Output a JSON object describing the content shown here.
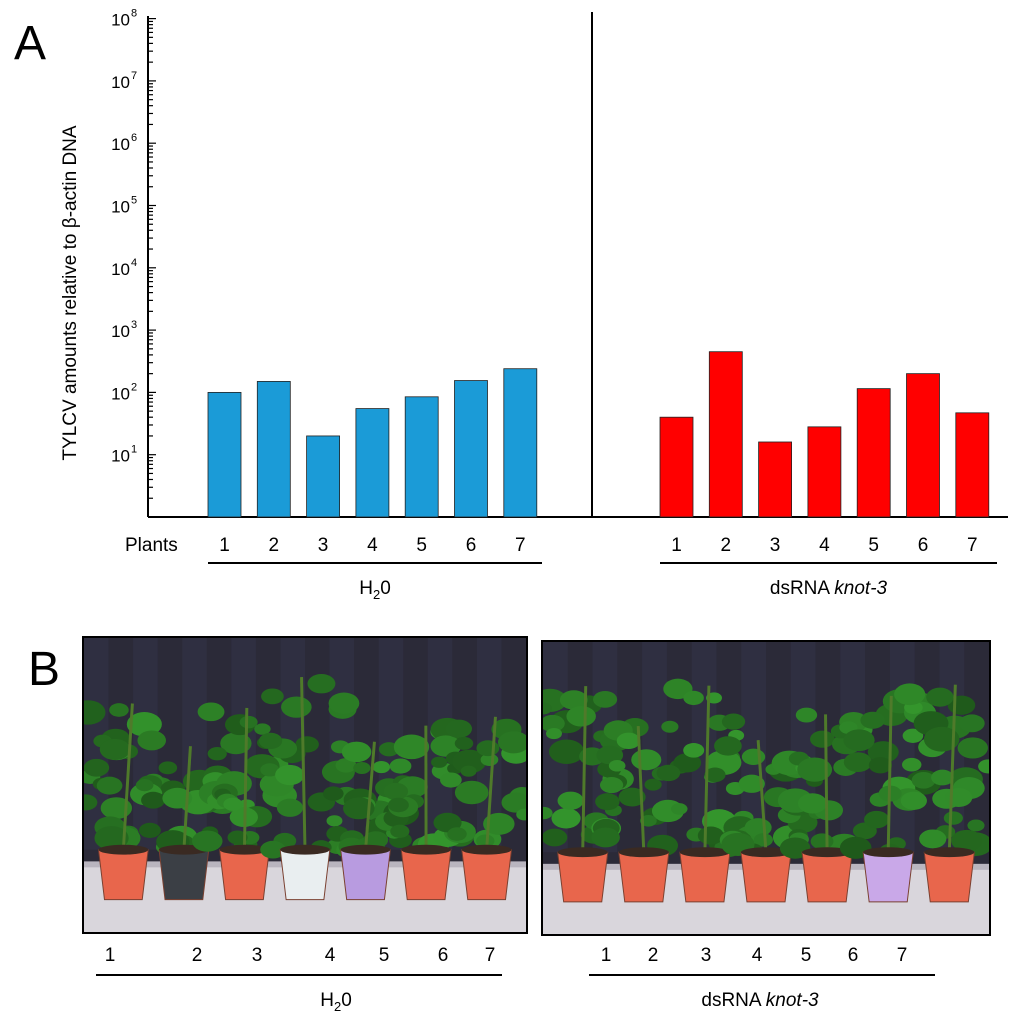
{
  "panels": {
    "a_letter": "A",
    "b_letter": "B"
  },
  "chart_data": {
    "type": "bar",
    "ylabel": "TYLCV amounts relative to β-actin DNA",
    "yscale": "log",
    "ylim": [
      1,
      100000000
    ],
    "yticks": [
      "10",
      "10",
      "10",
      "10",
      "10",
      "10",
      "10",
      "10"
    ],
    "ytick_exponents": [
      "1",
      "2",
      "3",
      "4",
      "5",
      "6",
      "7",
      "8"
    ],
    "plants_label": "Plants",
    "groups": [
      {
        "name_parts": [
          "H",
          "2",
          "0"
        ],
        "categories": [
          "1",
          "2",
          "3",
          "4",
          "5",
          "6",
          "7"
        ],
        "values": [
          100,
          150,
          20,
          55,
          85,
          155,
          240
        ],
        "color": "#1b9bd7"
      },
      {
        "name_parts": [
          "dsRNA ",
          "knot-3"
        ],
        "categories": [
          "1",
          "2",
          "3",
          "4",
          "5",
          "6",
          "7"
        ],
        "values": [
          40,
          450,
          16,
          28,
          115,
          200,
          47
        ],
        "color": "#ff0000"
      }
    ]
  },
  "photos": {
    "left": {
      "group_parts": [
        "H",
        "2",
        "0"
      ],
      "numbers": [
        "1",
        "2",
        "3",
        "4",
        "5",
        "6",
        "7"
      ],
      "pot_colors": [
        "#e8664c",
        "#3b3f45",
        "#e8664c",
        "#e9eef0",
        "#b89be0",
        "#e8664c",
        "#e8664c"
      ]
    },
    "right": {
      "group_parts": [
        "dsRNA ",
        "knot-3"
      ],
      "numbers": [
        "1",
        "2",
        "3",
        "4",
        "5",
        "6",
        "7"
      ],
      "pot_colors": [
        "#e8664c",
        "#e8664c",
        "#e8664c",
        "#e8664c",
        "#e8664c",
        "#c9a8e8",
        "#e8664c"
      ]
    }
  }
}
